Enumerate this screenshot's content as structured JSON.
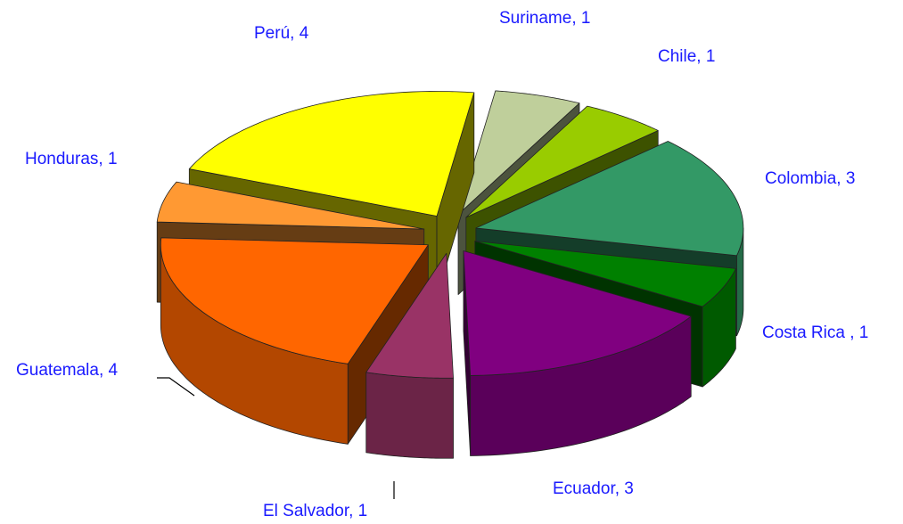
{
  "chart_data": {
    "type": "pie3d",
    "values": [
      1,
      1,
      3,
      1,
      3,
      1,
      4,
      1,
      4
    ],
    "value_labels": [
      "Suriname, 1",
      "Chile, 1",
      "Colombia, 3",
      "Costa Rica , 1",
      "Ecuador, 3",
      "El Salvador, 1",
      "Guatemala, 4",
      "Honduras, 1",
      "Perú, 4"
    ],
    "colors": [
      "#bfcf9b",
      "#99cc00",
      "#339966",
      "#008000",
      "#800080",
      "#993366",
      "#ff6600",
      "#ff9933",
      "#ffff00"
    ]
  }
}
